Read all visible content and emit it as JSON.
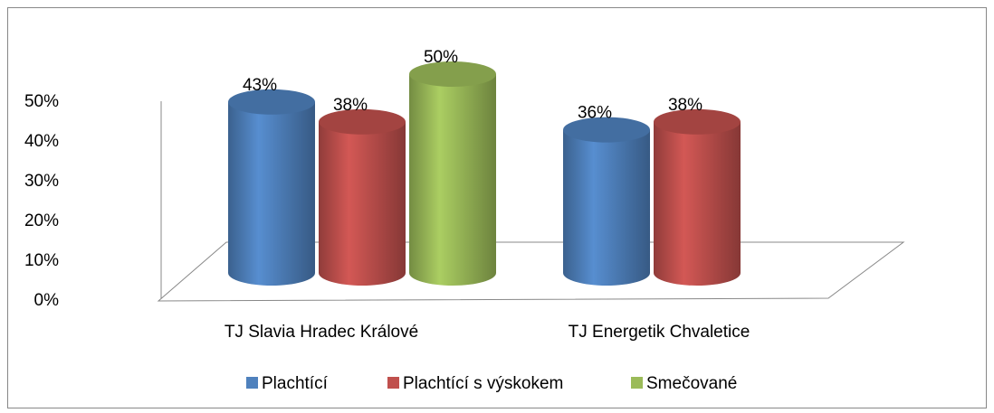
{
  "chart_data": {
    "type": "bar3d",
    "categories": [
      "TJ Slavia Hradec Králové",
      "TJ Energetik Chvaletice"
    ],
    "series": [
      {
        "name": "Plachtící",
        "color": "#4f81bd",
        "values": [
          43,
          36
        ],
        "value_labels": [
          "43%",
          "36%"
        ]
      },
      {
        "name": "Plachtící s výskokem",
        "color": "#c0504d",
        "values": [
          38,
          38
        ],
        "value_labels": [
          "38%",
          "38%"
        ]
      },
      {
        "name": "Smečované",
        "color": "#9bbb59",
        "values": [
          50,
          null
        ],
        "value_labels": [
          "50%",
          null
        ]
      }
    ],
    "ylim": [
      0,
      50
    ],
    "yticks": [
      {
        "value": 0,
        "label": "0%"
      },
      {
        "value": 10,
        "label": "10%"
      },
      {
        "value": 20,
        "label": "20%"
      },
      {
        "value": 30,
        "label": "30%"
      },
      {
        "value": 40,
        "label": "40%"
      },
      {
        "value": 50,
        "label": "50%"
      }
    ],
    "legend": "bottom"
  }
}
